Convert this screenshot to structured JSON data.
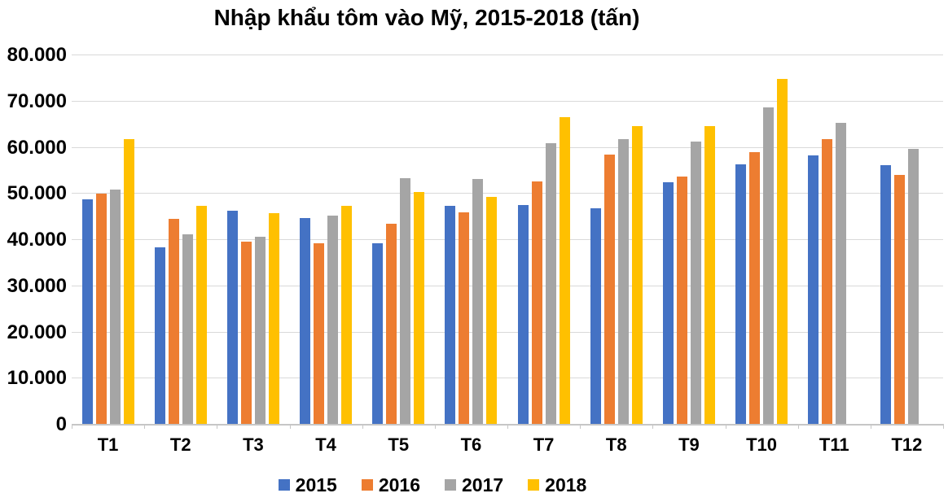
{
  "chart_data": {
    "type": "bar",
    "title": "Nhập khẩu tôm vào Mỹ, 2015-2018 (tấn)",
    "categories": [
      "T1",
      "T2",
      "T3",
      "T4",
      "T5",
      "T6",
      "T7",
      "T8",
      "T9",
      "T10",
      "T11",
      "T12"
    ],
    "series": [
      {
        "name": "2015",
        "color": "#4472C4",
        "values": [
          48700,
          38200,
          46100,
          44600,
          39200,
          47300,
          47400,
          46700,
          52400,
          56200,
          58100,
          56000
        ]
      },
      {
        "name": "2016",
        "color": "#ED7D31",
        "values": [
          49800,
          44500,
          39500,
          39200,
          43300,
          45800,
          52500,
          58400,
          53600,
          58800,
          61600,
          54000
        ]
      },
      {
        "name": "2017",
        "color": "#A5A5A5",
        "values": [
          50800,
          41100,
          40500,
          45200,
          53200,
          53100,
          60800,
          61600,
          61100,
          68500,
          65200,
          59600
        ]
      },
      {
        "name": "2018",
        "color": "#FFC000",
        "values": [
          61600,
          47200,
          45600,
          47200,
          50300,
          49100,
          66500,
          64500,
          64500,
          74700,
          null,
          null
        ]
      }
    ],
    "ylim": [
      0,
      80000
    ],
    "ytick_step": 10000,
    "ytick_labels": [
      "0",
      "10.000",
      "20.000",
      "30.000",
      "40.000",
      "50.000",
      "60.000",
      "70.000",
      "80.000"
    ],
    "grid": true,
    "legend_position": "bottom"
  },
  "colors": {
    "background": "#FFFFFF",
    "gridline": "#D9D9D9",
    "axis_line": "#C6C6C6",
    "text": "#000000"
  }
}
